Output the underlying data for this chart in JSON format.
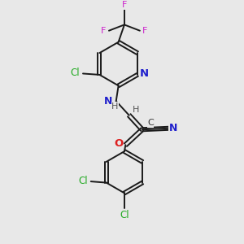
{
  "background_color": "#e8e8e8",
  "bond_color": "#1a1a1a",
  "atom_colors": {
    "N": "#2020cc",
    "O": "#dd2020",
    "Cl": "#22aa22",
    "F": "#cc22cc",
    "C": "#333333",
    "H": "#555555"
  },
  "figsize": [
    3.0,
    3.0
  ],
  "dpi": 100
}
